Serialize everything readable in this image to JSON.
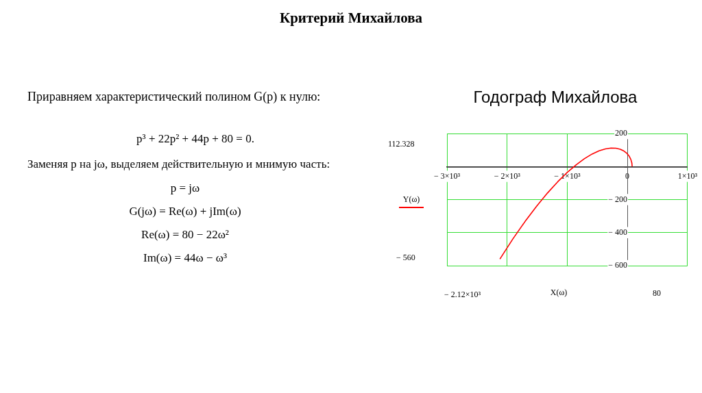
{
  "chart_data": {
    "type": "line",
    "title": "Критерий Михайлова",
    "subtitle": "Годограф Михайлова",
    "xlabel": "X(ω)",
    "annotations": [
      "Приравняем характеристический полином G(p) к нулю:",
      "p³ + 22p² + 44p + 80 = 0.",
      "Заменяя p на jω, выделяем действительную и мнимую часть:",
      "p = jω",
      "G(jω) = Re(ω) + jIm(ω)",
      "Re(ω) = 80 − 22ω²",
      "Im(ω) = 44ω − ω³",
      "112.328",
      "− 560",
      "− 2.12×10³",
      "80"
    ],
    "series": [
      {
        "name": "Y(ω)",
        "color": "#ff0000",
        "x": [
          80,
          74.5,
          58,
          30.5,
          -8,
          -57.5,
          -118,
          -189.5,
          -272,
          -365.5,
          -470,
          -585.5,
          -712,
          -849.5,
          -998,
          -1157.5,
          -1328,
          -1509.5,
          -1702,
          -1905.5,
          -2120
        ],
        "values": [
          0,
          22,
          43,
          63,
          80,
          94,
          105,
          111,
          112,
          107,
          95,
          76,
          48,
          11,
          -35,
          -92,
          -160,
          -240,
          -333,
          -439,
          -560
        ]
      }
    ],
    "xlim": [
      -3000,
      1000
    ],
    "xticks": [
      {
        "value": -3000,
        "label": "− 3×10³"
      },
      {
        "value": -2000,
        "label": "− 2×10³"
      },
      {
        "value": -1000,
        "label": "− 1×10³"
      },
      0,
      {
        "value": 1000,
        "label": "1×10³"
      }
    ],
    "ylim": [
      -600,
      200
    ],
    "yticks": [
      {
        "value": -600,
        "label": "− 600"
      },
      {
        "value": -400,
        "label": "− 400"
      },
      {
        "value": -200,
        "label": "− 200"
      },
      {
        "value": 0,
        "label": null
      },
      200
    ],
    "grid": true,
    "legend": "left",
    "marker": "none",
    "line_style": "solid"
  }
}
